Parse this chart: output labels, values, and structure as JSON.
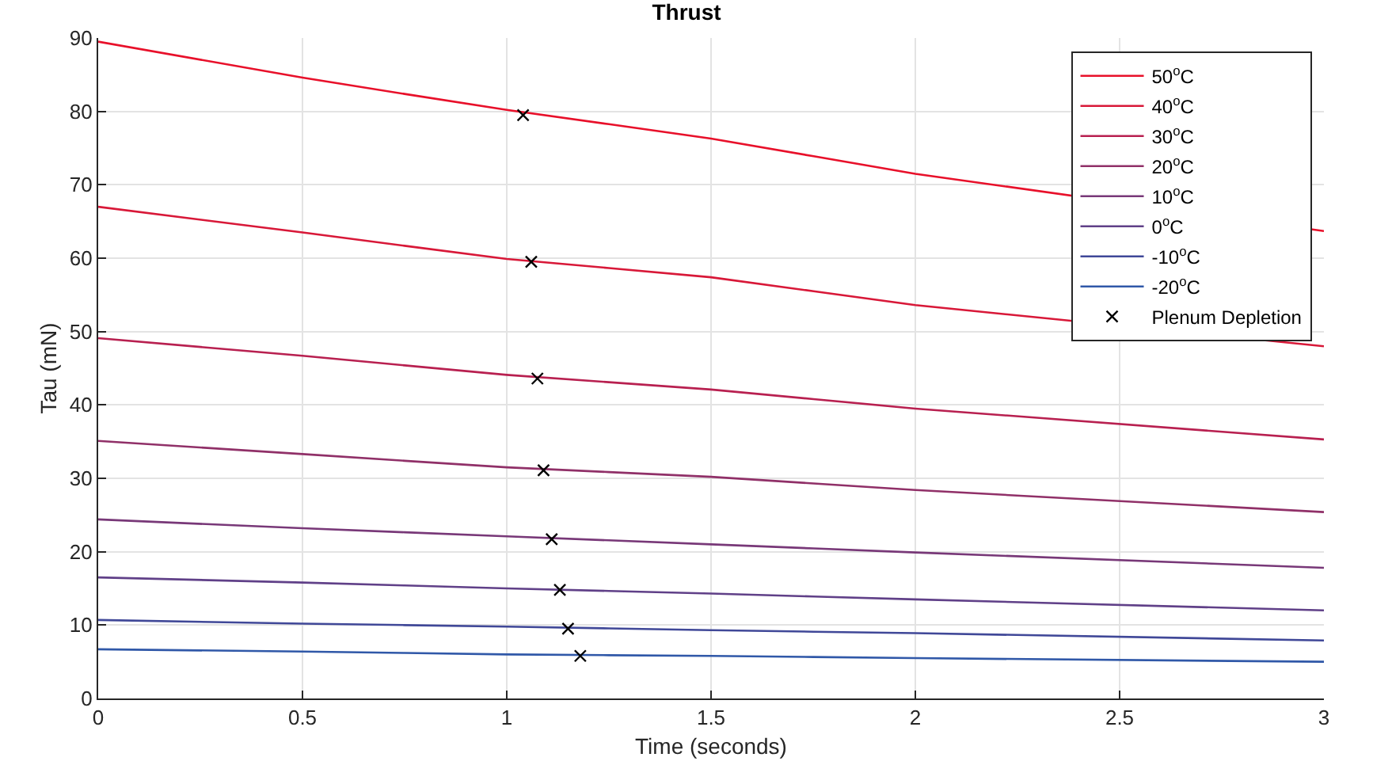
{
  "chart_data": {
    "type": "line",
    "title": "Thrust",
    "xlabel": "Time (seconds)",
    "ylabel": "Tau (mN)",
    "x": [
      0,
      0.5,
      1,
      1.5,
      2,
      3
    ],
    "xlim": [
      0,
      3
    ],
    "xticks": [
      0,
      0.5,
      1,
      1.5,
      2,
      2.5,
      3
    ],
    "ylim": [
      0,
      90
    ],
    "yticks": [
      0,
      10,
      20,
      30,
      40,
      50,
      60,
      70,
      80,
      90
    ],
    "grid": true,
    "legend": "top right",
    "line_style": "solid",
    "series": [
      {
        "name": "50$^{o}$C",
        "color": "#e8102a",
        "marker": "none",
        "values": [
          89.5,
          84.6,
          80.2,
          76.3,
          71.5,
          63.7
        ]
      },
      {
        "name": "40$^{o}$C",
        "color": "#d81838",
        "marker": "none",
        "values": [
          67.0,
          63.5,
          59.9,
          57.4,
          53.6,
          48.0
        ]
      },
      {
        "name": "30$^{o}$C",
        "color": "#b82050",
        "marker": "none",
        "values": [
          49.1,
          46.7,
          44.1,
          42.1,
          39.5,
          35.3
        ]
      },
      {
        "name": "20$^{o}$C",
        "color": "#903068",
        "marker": "none",
        "values": [
          35.1,
          33.3,
          31.5,
          30.2,
          28.4,
          25.4
        ]
      },
      {
        "name": "10$^{o}$C",
        "color": "#783878",
        "marker": "none",
        "values": [
          24.4,
          23.2,
          22.1,
          21.0,
          19.9,
          17.8
        ]
      },
      {
        "name": "0$^{o}$C",
        "color": "#604088",
        "marker": "none",
        "values": [
          16.5,
          15.8,
          15.0,
          14.3,
          13.5,
          12.0
        ]
      },
      {
        "name": "-10$^{o}$C",
        "color": "#404898",
        "marker": "none",
        "values": [
          10.7,
          10.2,
          9.8,
          9.3,
          8.9,
          7.9
        ]
      },
      {
        "name": "-20$^{o}$C",
        "color": "#3058a8",
        "marker": "none",
        "values": [
          6.7,
          6.4,
          6.0,
          5.8,
          5.5,
          5.0
        ]
      },
      {
        "name": "Plenum Depletion",
        "type": "scatter",
        "color": "#000000",
        "marker": "cross",
        "x": [
          1.04,
          1.06,
          1.075,
          1.09,
          1.11,
          1.13,
          1.15,
          1.18
        ],
        "values": [
          79.5,
          59.5,
          43.6,
          31.1,
          21.7,
          14.8,
          9.5,
          5.8
        ]
      }
    ]
  }
}
